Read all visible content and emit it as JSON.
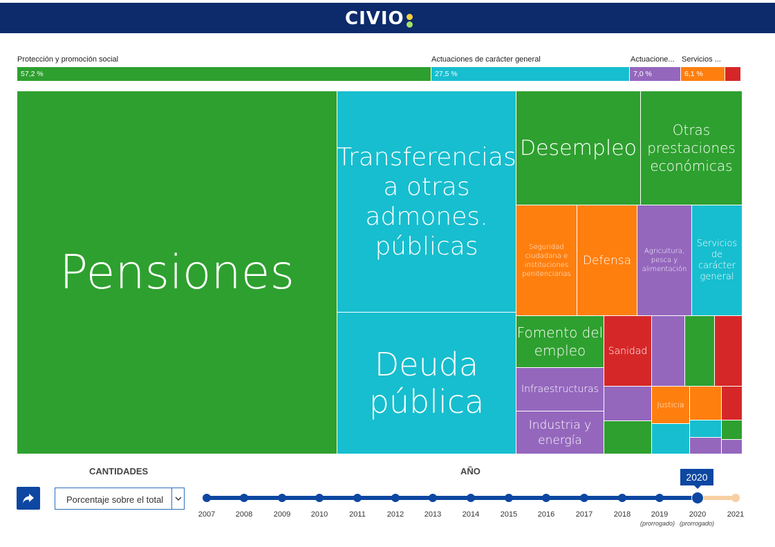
{
  "header": {
    "logo_text": "CIVIO",
    "dot_colors": [
      "#f4d03f",
      "#a8e06a"
    ]
  },
  "categories": [
    {
      "label": "Protección y promoción social",
      "pct": "57,2 %",
      "color": "#2ea02f"
    },
    {
      "label": "Actuaciones de carácter general",
      "pct": "27,5 %",
      "color": "#17becf"
    },
    {
      "label": "Actuacione...",
      "pct": "7,0 %",
      "color": "#9467bd"
    },
    {
      "label": "Servicios ...",
      "pct": "6,1 %",
      "color": "#ff7f0e"
    },
    {
      "label": "",
      "pct": "",
      "color": "#d62728"
    }
  ],
  "treemap": {
    "pensiones": "Pensiones",
    "transferencias": "Transferencias a otras admones. públicas",
    "deuda": "Deuda pública",
    "desempleo": "Desempleo",
    "otras_prestaciones": "Otras prestaciones económicas",
    "seguridad": "Seguridad ciudadana e instituciones penitenciarias",
    "defensa": "Defensa",
    "agricultura": "Agricultura, pesca y alimentación",
    "servicios_generales": "Servicios de carácter general",
    "fomento": "Fomento del empleo",
    "infraestructuras": "Infraestructuras",
    "industria": "Industria y energía",
    "sanidad": "Sanidad",
    "justicia": "Justicia"
  },
  "controls": {
    "cantidades_label": "CANTIDADES",
    "anio_label": "AÑO",
    "select_value": "Porcentaje sobre el total",
    "selected_year": "2020",
    "years": [
      "2007",
      "2008",
      "2009",
      "2010",
      "2011",
      "2012",
      "2013",
      "2014",
      "2015",
      "2016",
      "2017",
      "2018",
      "2019",
      "2020",
      "2021"
    ],
    "prorrogado_2019": "(prorrogado)",
    "prorrogado_2020": "(prorrogado)"
  }
}
